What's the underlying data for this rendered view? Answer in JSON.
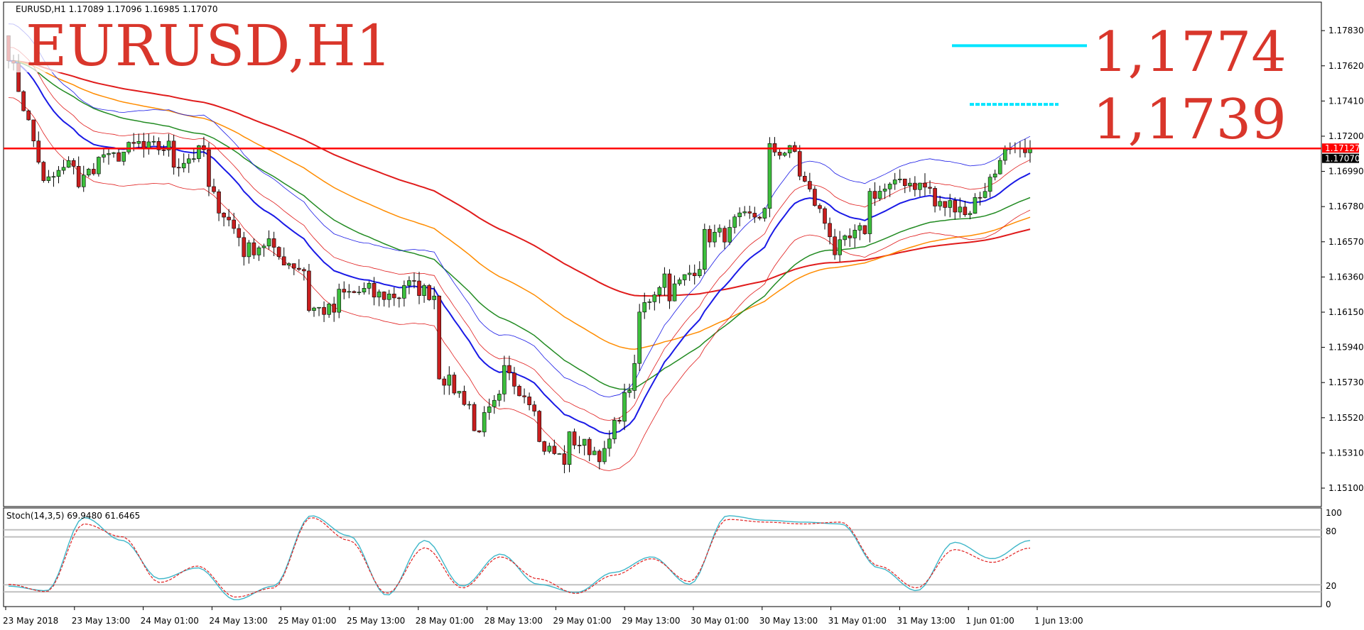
{
  "window": {
    "header_text": "EURUSD,H1  1.17089 1.17096 1.16985 1.17070"
  },
  "overlay": {
    "title": "EURUSD,H1",
    "levels": [
      {
        "label": "1,1774",
        "price": 1.1774,
        "color": "#00e5ff"
      },
      {
        "label": "1,1739",
        "price": 1.1739,
        "color": "#00e5ff",
        "dashed": true
      }
    ]
  },
  "price_axis": {
    "ticks": [
      "1.17830",
      "1.17620",
      "1.17410",
      "1.17200",
      "1.16990",
      "1.16780",
      "1.16570",
      "1.16360",
      "1.16150",
      "1.15940",
      "1.15730",
      "1.15520",
      "1.15310",
      "1.15100"
    ],
    "resistance_label": "1.17127",
    "current_label": "1.17070"
  },
  "time_axis": {
    "ticks": [
      "23 May 2018",
      "23 May 13:00",
      "24 May 01:00",
      "24 May 13:00",
      "25 May 01:00",
      "25 May 13:00",
      "28 May 01:00",
      "28 May 13:00",
      "29 May 01:00",
      "29 May 13:00",
      "30 May 01:00",
      "30 May 13:00",
      "31 May 01:00",
      "31 May 13:00",
      "1 Jun 01:00",
      "1 Jun 13:00"
    ]
  },
  "stoch": {
    "label": "Stoch(14,3,5) 69.9480 61.6465",
    "scale_labels": [
      "100",
      "80",
      "20",
      "0"
    ]
  },
  "colors": {
    "bull": "#3cbf3c",
    "bear": "#c81e1e",
    "resistance": "#ff0000",
    "ma_red": "#e01b1b",
    "ma_orange": "#ff8c00",
    "ma_green": "#228b22",
    "ma_blue": "#1a1ae6",
    "stoch_main": "#3fb7c9",
    "stoch_signal": "#e02020"
  },
  "chart_data": {
    "type": "candlestick",
    "symbol": "EURUSD",
    "timeframe": "H1",
    "ylim": [
      1.1499,
      1.18
    ],
    "resistance": 1.17127,
    "last_price": 1.1707,
    "anchors": [
      [
        1.178,
        1.177
      ],
      [
        1.17,
        1.169
      ],
      [
        1.1705,
        1.1688
      ],
      [
        1.1712,
        1.1705
      ],
      [
        1.1716,
        1.1712
      ],
      [
        1.1714,
        1.1703
      ],
      [
        1.1712,
        1.169
      ],
      [
        1.166,
        1.165
      ],
      [
        1.1658,
        1.165
      ],
      [
        1.164,
        1.1618
      ],
      [
        1.1615,
        1.1625
      ],
      [
        1.1628,
        1.1625
      ],
      [
        1.1625,
        1.1632
      ],
      [
        1.1625,
        1.158
      ],
      [
        1.156,
        1.154
      ],
      [
        1.1565,
        1.158
      ],
      [
        1.156,
        1.1538
      ],
      [
        1.1525,
        1.154
      ],
      [
        1.153,
        1.1525
      ],
      [
        1.158,
        1.161
      ],
      [
        1.164,
        1.1625
      ],
      [
        1.1645,
        1.166
      ],
      [
        1.1662,
        1.1668
      ],
      [
        1.1675,
        1.1712
      ],
      [
        1.171,
        1.1698
      ],
      [
        1.166,
        1.165
      ],
      [
        1.1665,
        1.1685
      ],
      [
        1.169,
        1.1695
      ],
      [
        1.1688,
        1.1678
      ],
      [
        1.168,
        1.1672
      ],
      [
        1.17,
        1.171
      ],
      [
        1.1708,
        1.1707
      ]
    ],
    "stoch_anchors": [
      [
        20,
        22
      ],
      [
        15,
        14
      ],
      [
        95,
        88
      ],
      [
        70,
        74
      ],
      [
        28,
        24
      ],
      [
        40,
        42
      ],
      [
        5,
        8
      ],
      [
        20,
        18
      ],
      [
        97,
        95
      ],
      [
        75,
        70
      ],
      [
        10,
        12
      ],
      [
        70,
        62
      ],
      [
        20,
        18
      ],
      [
        55,
        52
      ],
      [
        22,
        28
      ],
      [
        13,
        12
      ],
      [
        35,
        32
      ],
      [
        52,
        50
      ],
      [
        22,
        25
      ],
      [
        97,
        93
      ],
      [
        92,
        90
      ],
      [
        90,
        88
      ],
      [
        88,
        90
      ],
      [
        40,
        42
      ],
      [
        15,
        18
      ],
      [
        68,
        60
      ],
      [
        50,
        46
      ],
      [
        69.948,
        61.6465
      ]
    ],
    "stoch_value": 69.948,
    "stoch_signal": 61.6465
  }
}
